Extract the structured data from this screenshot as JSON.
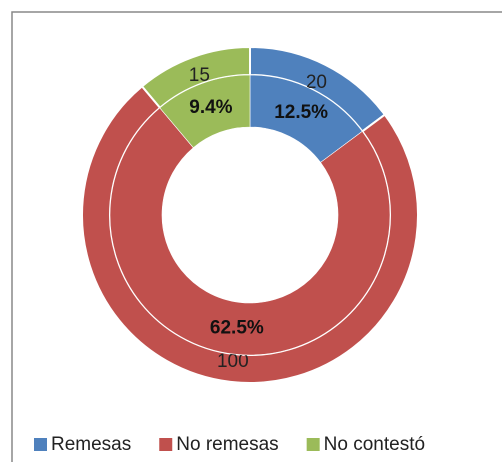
{
  "chart_data": {
    "type": "doughnut",
    "categories": [
      "Remesas",
      "No remesas",
      "No contestó"
    ],
    "colors": [
      "#4f81bd",
      "#c0504d",
      "#9bbb59"
    ],
    "series": [
      {
        "values": [
          20,
          100,
          15
        ]
      },
      {
        "values": [
          12.5,
          62.5,
          9.4
        ],
        "value_labels": [
          "12.5%",
          "62.5%",
          "9.4%"
        ]
      }
    ]
  }
}
